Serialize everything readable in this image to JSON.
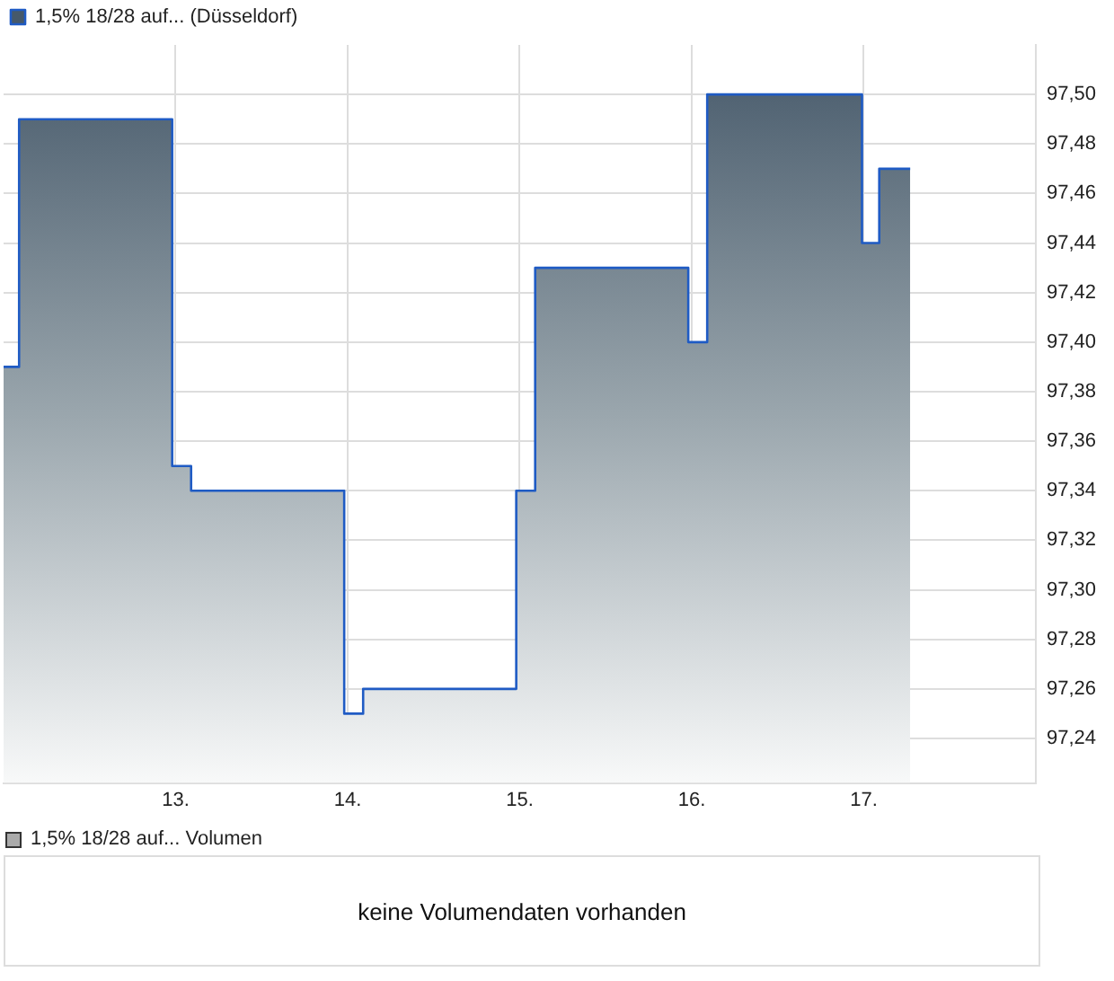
{
  "chart_data": [
    {
      "type": "area",
      "x": [
        12,
        12.09,
        12.09,
        12.98,
        12.98,
        13.09,
        13.09,
        13.98,
        13.98,
        14.09,
        14.09,
        14.98,
        14.98,
        15.09,
        15.09,
        15.98,
        15.98,
        16.09,
        16.09,
        16.99,
        16.99,
        17.09,
        17.09,
        17.27
      ],
      "series": [
        {
          "name": "1,5% 18/28 auf... (Düsseldorf)",
          "color": "#1f5bc4",
          "values": [
            97.39,
            97.39,
            97.49,
            97.49,
            97.35,
            97.35,
            97.34,
            97.34,
            97.25,
            97.25,
            97.26,
            97.26,
            97.34,
            97.34,
            97.43,
            97.43,
            97.4,
            97.4,
            97.5,
            97.5,
            97.44,
            97.44,
            97.47,
            97.47
          ]
        }
      ],
      "xlim": [
        12,
        18
      ],
      "xticks": [
        {
          "value": 13,
          "label": "13."
        },
        {
          "value": 14,
          "label": "14."
        },
        {
          "value": 15,
          "label": "15."
        },
        {
          "value": 16,
          "label": "16."
        },
        {
          "value": 17,
          "label": "17."
        }
      ],
      "ylim": [
        97.222,
        97.52
      ],
      "yticks": [
        {
          "value": 97.24,
          "label": "97,24"
        },
        {
          "value": 97.26,
          "label": "97,26"
        },
        {
          "value": 97.28,
          "label": "97,28"
        },
        {
          "value": 97.3,
          "label": "97,30"
        },
        {
          "value": 97.32,
          "label": "97,32"
        },
        {
          "value": 97.34,
          "label": "97,34"
        },
        {
          "value": 97.36,
          "label": "97,36"
        },
        {
          "value": 97.38,
          "label": "97,38"
        },
        {
          "value": 97.4,
          "label": "97,40"
        },
        {
          "value": 97.42,
          "label": "97,42"
        },
        {
          "value": 97.44,
          "label": "97,44"
        },
        {
          "value": 97.46,
          "label": "97,46"
        },
        {
          "value": 97.48,
          "label": "97,48"
        },
        {
          "value": 97.5,
          "label": "97,50"
        }
      ],
      "grid": true,
      "legend": "top left"
    },
    {
      "type": "other",
      "title": "1,5% 18/28 auf... Volumen",
      "annotations": [
        "keine Volumendaten vorhanden"
      ]
    }
  ]
}
